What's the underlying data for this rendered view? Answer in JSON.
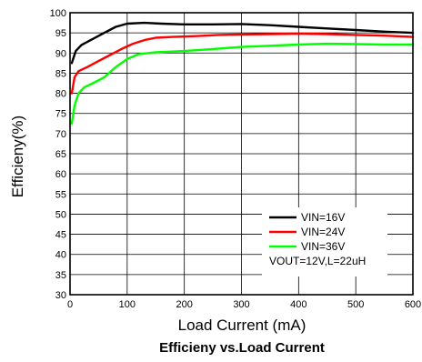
{
  "chart_data": {
    "type": "line",
    "title": "Efficieny vs.Load Current",
    "xlabel": "Load Current (mA)",
    "ylabel": "Efficieny(%)",
    "xlim": [
      0,
      600
    ],
    "ylim": [
      30,
      100
    ],
    "xticks": [
      0,
      100,
      200,
      300,
      400,
      500,
      600
    ],
    "yticks": [
      30,
      35,
      40,
      45,
      50,
      55,
      60,
      65,
      70,
      75,
      80,
      85,
      90,
      95,
      100
    ],
    "grid": true,
    "legend_position": "bottom-right",
    "legend_note": "VOUT=12V,L=22uH",
    "series": [
      {
        "name": "VIN=16V",
        "color": "#000000",
        "points": [
          [
            3,
            87.5
          ],
          [
            10,
            90.5
          ],
          [
            20,
            92
          ],
          [
            40,
            93.5
          ],
          [
            60,
            95
          ],
          [
            80,
            96.5
          ],
          [
            100,
            97.3
          ],
          [
            130,
            97.5
          ],
          [
            160,
            97.3
          ],
          [
            200,
            97.1
          ],
          [
            250,
            97.1
          ],
          [
            300,
            97.2
          ],
          [
            350,
            96.9
          ],
          [
            400,
            96.5
          ],
          [
            450,
            96.1
          ],
          [
            500,
            95.7
          ],
          [
            550,
            95.3
          ],
          [
            600,
            95
          ]
        ]
      },
      {
        "name": "VIN=24V",
        "color": "#ff0000",
        "points": [
          [
            3,
            80
          ],
          [
            8,
            84
          ],
          [
            15,
            85.5
          ],
          [
            30,
            86.5
          ],
          [
            50,
            88
          ],
          [
            70,
            89.5
          ],
          [
            90,
            91
          ],
          [
            110,
            92.3
          ],
          [
            130,
            93.2
          ],
          [
            150,
            93.8
          ],
          [
            180,
            94
          ],
          [
            220,
            94.2
          ],
          [
            260,
            94.5
          ],
          [
            300,
            94.6
          ],
          [
            350,
            94.7
          ],
          [
            400,
            94.8
          ],
          [
            450,
            94.7
          ],
          [
            500,
            94.5
          ],
          [
            550,
            94.3
          ],
          [
            600,
            94
          ]
        ]
      },
      {
        "name": "VIN=36V",
        "color": "#00ff00",
        "points": [
          [
            3,
            72.5
          ],
          [
            8,
            77
          ],
          [
            15,
            80
          ],
          [
            25,
            81.5
          ],
          [
            40,
            82.5
          ],
          [
            60,
            84
          ],
          [
            80,
            86.5
          ],
          [
            100,
            88.5
          ],
          [
            120,
            89.7
          ],
          [
            150,
            90.2
          ],
          [
            200,
            90.5
          ],
          [
            250,
            91
          ],
          [
            300,
            91.5
          ],
          [
            350,
            91.8
          ],
          [
            400,
            92.1
          ],
          [
            450,
            92.3
          ],
          [
            500,
            92.2
          ],
          [
            550,
            92.1
          ],
          [
            600,
            92.1
          ]
        ]
      }
    ]
  }
}
